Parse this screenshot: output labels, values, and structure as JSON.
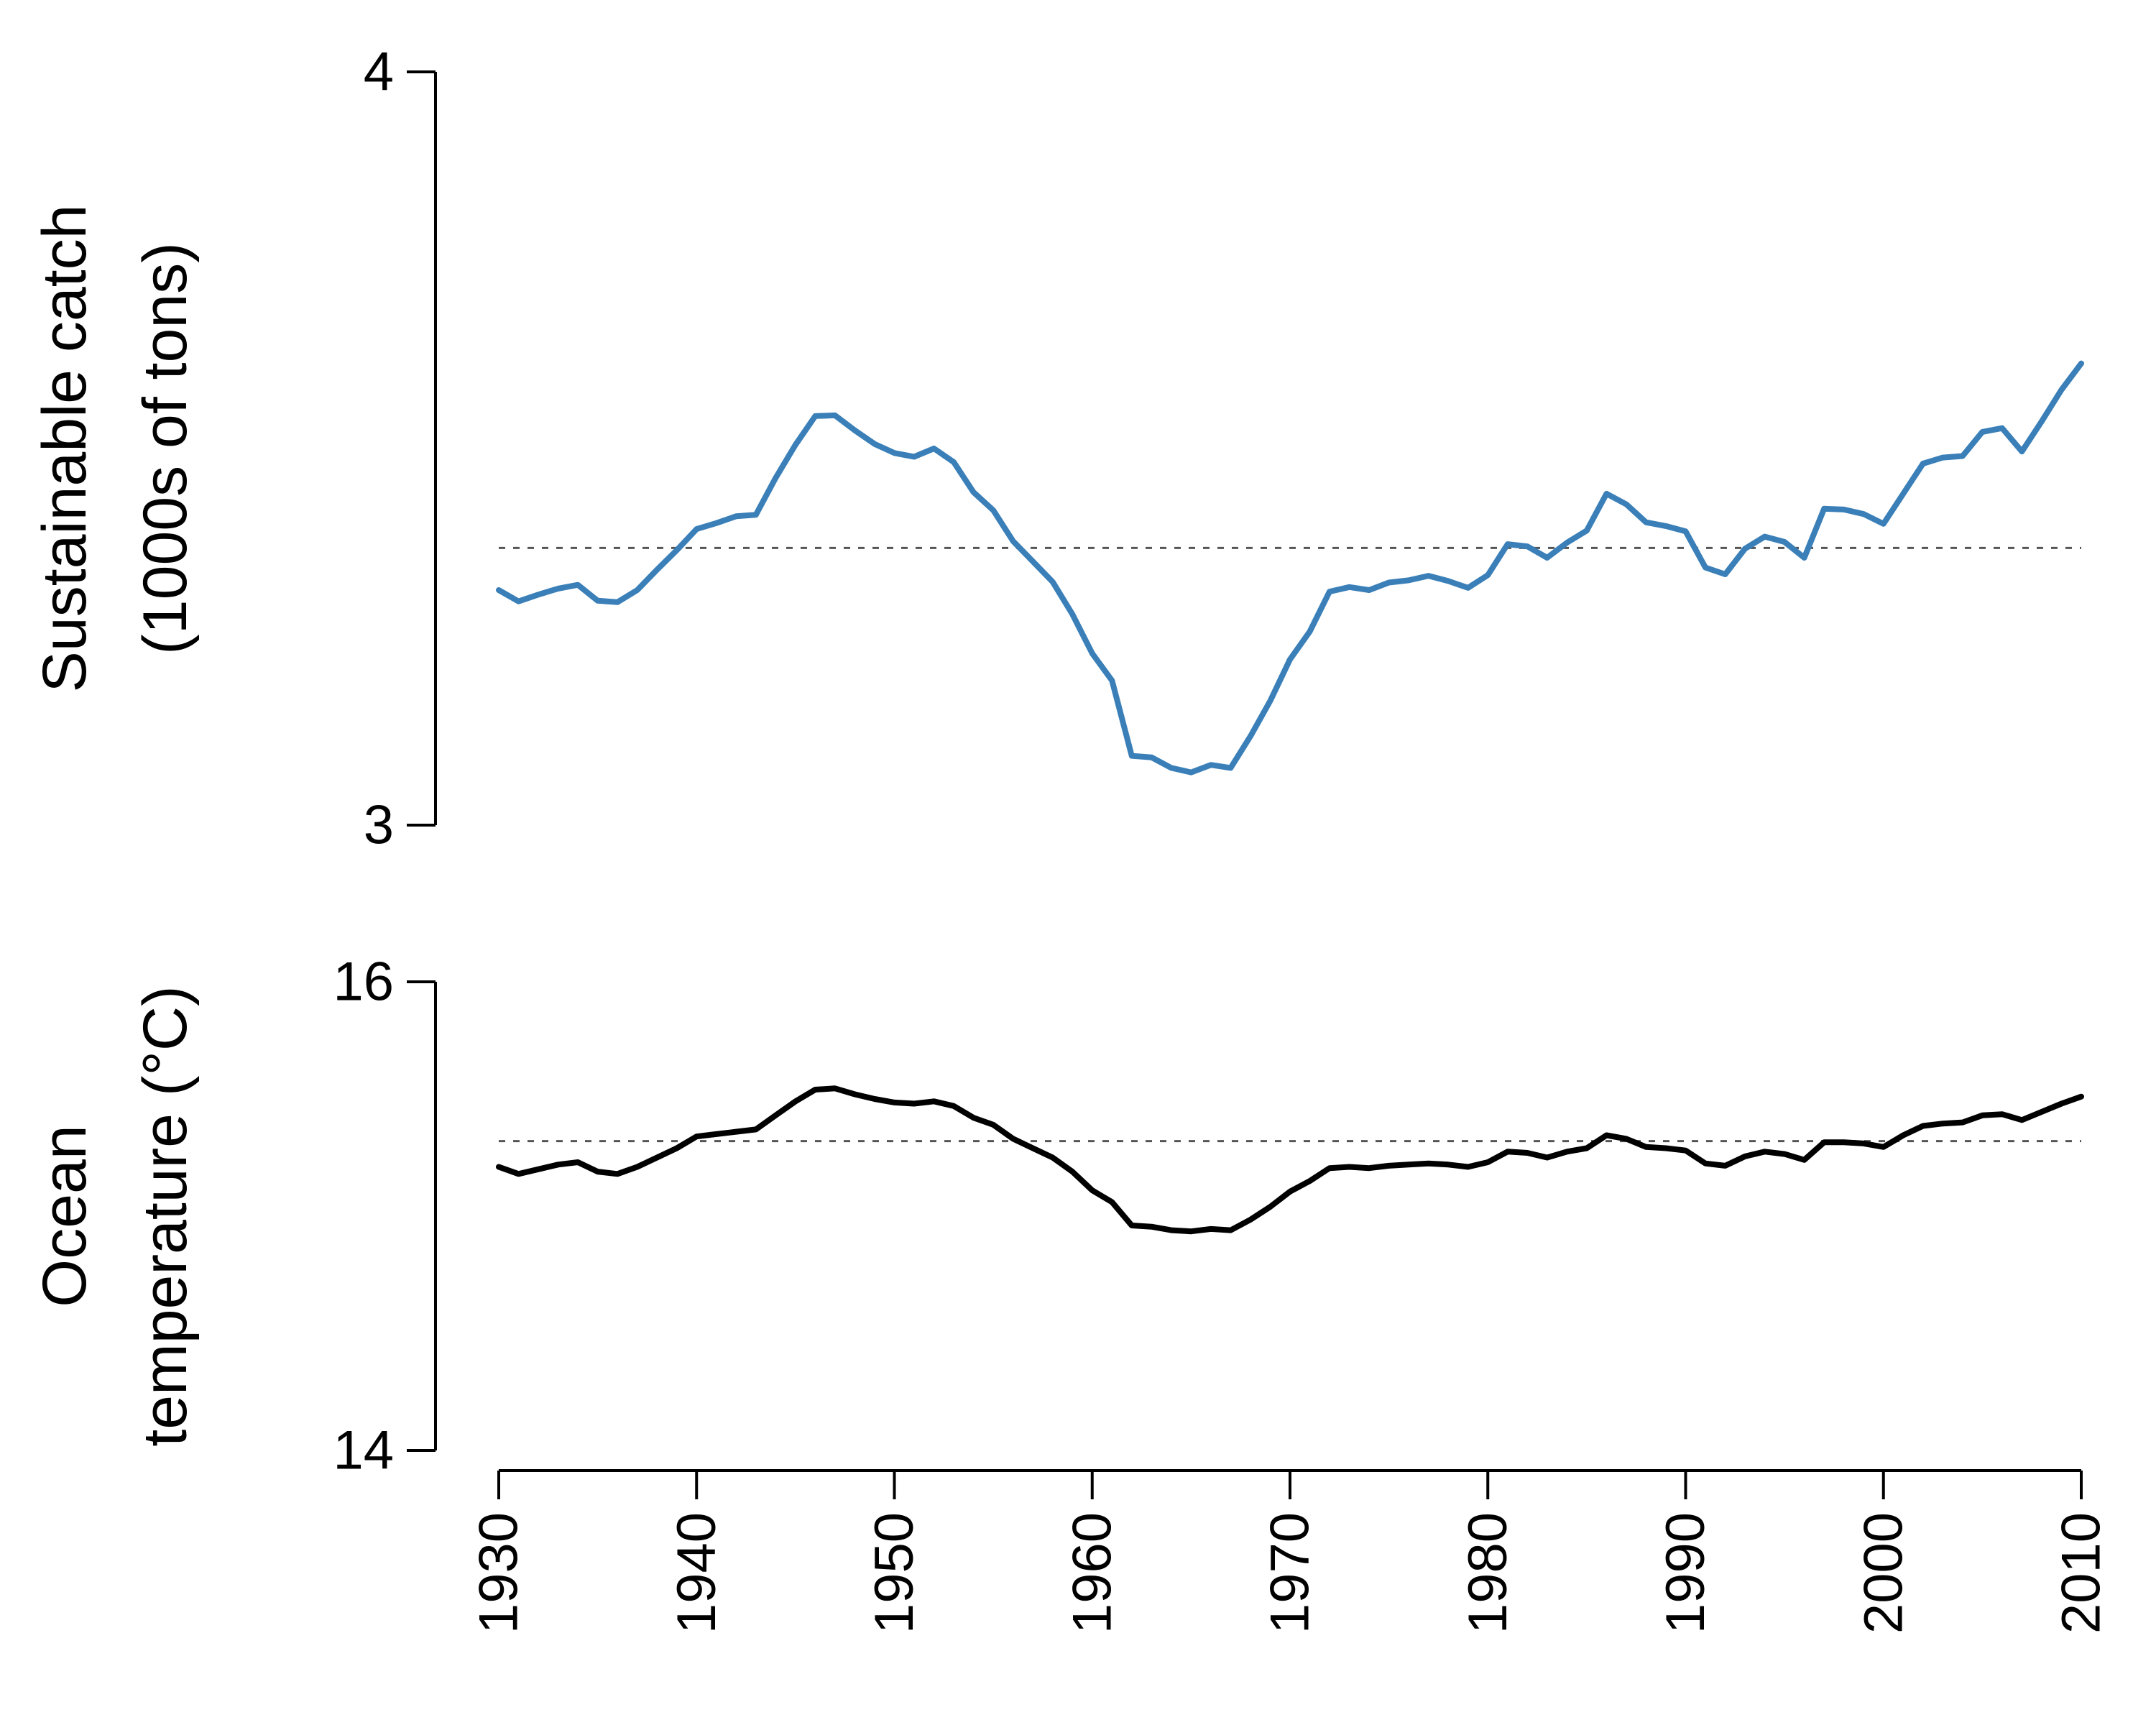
{
  "chart_data": [
    {
      "type": "line",
      "ylabel_lines": [
        "Sustainable catch",
        "(1000s of tons)"
      ],
      "xlim": [
        1930,
        2010
      ],
      "ylim": [
        3,
        4
      ],
      "yticks": [
        "3",
        "4"
      ],
      "reference_line": 3.368,
      "reference_style": "dashed",
      "grid": false,
      "color": "#3a7fb8",
      "series": [
        {
          "x": [
            1930,
            1931,
            1932,
            1933,
            1934,
            1935,
            1936,
            1937,
            1938,
            1939,
            1940,
            1941,
            1942,
            1943,
            1944,
            1945,
            1946,
            1947,
            1948,
            1949,
            1950,
            1951,
            1952,
            1953,
            1954,
            1955,
            1956,
            1957,
            1958,
            1959,
            1960,
            1961,
            1962,
            1963,
            1964,
            1965,
            1966,
            1967,
            1968,
            1969,
            1970,
            1971,
            1972,
            1973,
            1974,
            1975,
            1976,
            1977,
            1978,
            1979,
            1980,
            1981,
            1982,
            1983,
            1984,
            1985,
            1986,
            1987,
            1988,
            1989,
            1990,
            1991,
            1992,
            1993,
            1994,
            1995,
            1996,
            1997,
            1998,
            1999,
            2000,
            2001,
            2002,
            2003,
            2004,
            2005,
            2006,
            2007,
            2008,
            2009,
            2010
          ],
          "values": [
            3.312,
            3.297,
            3.306,
            3.314,
            3.319,
            3.298,
            3.296,
            3.312,
            3.339,
            3.365,
            3.393,
            3.401,
            3.41,
            3.412,
            3.461,
            3.505,
            3.543,
            3.544,
            3.524,
            3.506,
            3.494,
            3.489,
            3.5,
            3.482,
            3.442,
            3.418,
            3.377,
            3.35,
            3.323,
            3.28,
            3.228,
            3.192,
            3.092,
            3.09,
            3.076,
            3.07,
            3.08,
            3.076,
            3.118,
            3.165,
            3.22,
            3.257,
            3.31,
            3.316,
            3.312,
            3.322,
            3.325,
            3.331,
            3.324,
            3.315,
            3.332,
            3.373,
            3.37,
            3.355,
            3.375,
            3.391,
            3.44,
            3.426,
            3.402,
            3.397,
            3.39,
            3.342,
            3.333,
            3.367,
            3.383,
            3.376,
            3.355,
            3.42,
            3.419,
            3.413,
            3.4,
            3.44,
            3.48,
            3.488,
            3.49,
            3.522,
            3.527,
            3.496,
            3.536,
            3.578,
            3.613
          ]
        }
      ]
    },
    {
      "type": "line",
      "ylabel_lines": [
        "Ocean",
        "temperature (°C)"
      ],
      "xlim": [
        1930,
        2010
      ],
      "ylim": [
        14,
        16
      ],
      "yticks": [
        "14",
        "16"
      ],
      "xticks": [
        "1930",
        "1940",
        "1950",
        "1960",
        "1970",
        "1980",
        "1990",
        "2000",
        "2010"
      ],
      "reference_line": 15.32,
      "reference_style": "dashed",
      "grid": false,
      "color": "#000000",
      "series": [
        {
          "x": [
            1930,
            1931,
            1932,
            1933,
            1934,
            1935,
            1936,
            1937,
            1938,
            1939,
            1940,
            1941,
            1942,
            1943,
            1944,
            1945,
            1946,
            1947,
            1948,
            1949,
            1950,
            1951,
            1952,
            1953,
            1954,
            1955,
            1956,
            1957,
            1958,
            1959,
            1960,
            1961,
            1962,
            1963,
            1964,
            1965,
            1966,
            1967,
            1968,
            1969,
            1970,
            1971,
            1972,
            1973,
            1974,
            1975,
            1976,
            1977,
            1978,
            1979,
            1980,
            1981,
            1982,
            1983,
            1984,
            1985,
            1986,
            1987,
            1988,
            1989,
            1990,
            1991,
            1992,
            1993,
            1994,
            1995,
            1996,
            1997,
            1998,
            1999,
            2000,
            2001,
            2002,
            2003,
            2004,
            2005,
            2006,
            2007,
            2008,
            2009,
            2010
          ],
          "values": [
            15.21,
            15.18,
            15.2,
            15.22,
            15.23,
            15.19,
            15.18,
            15.21,
            15.25,
            15.29,
            15.34,
            15.35,
            15.36,
            15.37,
            15.43,
            15.49,
            15.54,
            15.545,
            15.52,
            15.5,
            15.485,
            15.48,
            15.49,
            15.47,
            15.42,
            15.39,
            15.33,
            15.29,
            15.25,
            15.19,
            15.11,
            15.06,
            14.96,
            14.955,
            14.94,
            14.935,
            14.945,
            14.94,
            14.985,
            15.04,
            15.105,
            15.15,
            15.205,
            15.21,
            15.205,
            15.215,
            15.22,
            15.225,
            15.22,
            15.21,
            15.23,
            15.275,
            15.27,
            15.25,
            15.275,
            15.29,
            15.345,
            15.33,
            15.295,
            15.29,
            15.28,
            15.225,
            15.215,
            15.255,
            15.275,
            15.265,
            15.24,
            15.315,
            15.315,
            15.31,
            15.295,
            15.345,
            15.385,
            15.395,
            15.4,
            15.43,
            15.435,
            15.41,
            15.445,
            15.48,
            15.51
          ]
        }
      ]
    }
  ]
}
